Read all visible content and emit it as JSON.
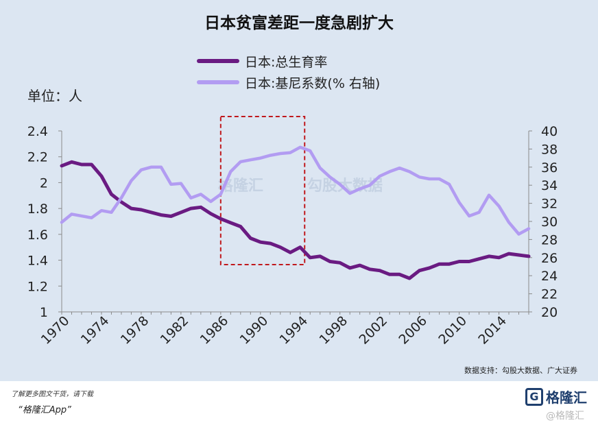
{
  "title": "日本贫富差距一度急剧扩大",
  "unit_label": "单位：人",
  "source_note": "数据支持：勾股大数据、广大证券",
  "footer": {
    "tip": "了解更多图文干货，请下载",
    "app": "“格隆汇App”",
    "logo_mark": "G",
    "logo_text": "格隆汇",
    "watermark": "@格隆汇"
  },
  "colors": {
    "fertility": "#6a1b82",
    "gini": "#b29cf2",
    "highlight_box": "#c0181c",
    "panel": "#dce6f2"
  },
  "chart_data": {
    "type": "line",
    "title": "日本贫富差距一度急剧扩大",
    "x_ticks": [
      "1970",
      "1974",
      "1978",
      "1982",
      "1986",
      "1990",
      "1994",
      "1998",
      "2002",
      "2006",
      "2010",
      "2014"
    ],
    "left_axis": {
      "unit": "单位：人",
      "ylim": [
        1,
        2.4
      ],
      "ticks": [
        "2.4",
        "2.2",
        "2",
        "1.8",
        "1.6",
        "1.4",
        "1.2",
        "1"
      ]
    },
    "right_axis": {
      "ylim": [
        20,
        40
      ],
      "ticks": [
        "40",
        "38",
        "36",
        "34",
        "32",
        "30",
        "28",
        "26",
        "24",
        "22",
        "20"
      ]
    },
    "legend_position": "top",
    "grid": false,
    "series": [
      {
        "name": "日本:总生育率",
        "axis": "left",
        "color": "#6a1b82",
        "x": [
          1970,
          1971,
          1972,
          1973,
          1974,
          1975,
          1976,
          1977,
          1978,
          1979,
          1980,
          1981,
          1982,
          1983,
          1984,
          1985,
          1986,
          1987,
          1988,
          1989,
          1990,
          1991,
          1992,
          1993,
          1994,
          1995,
          1996,
          1997,
          1998,
          1999,
          2000,
          2001,
          2002,
          2003,
          2004,
          2005,
          2006,
          2007,
          2008,
          2009,
          2010,
          2011,
          2012,
          2013,
          2014,
          2015,
          2016,
          2017
        ],
        "values": [
          2.13,
          2.16,
          2.14,
          2.14,
          2.05,
          1.91,
          1.85,
          1.8,
          1.79,
          1.77,
          1.75,
          1.74,
          1.77,
          1.8,
          1.81,
          1.76,
          1.72,
          1.69,
          1.66,
          1.57,
          1.54,
          1.53,
          1.5,
          1.46,
          1.5,
          1.42,
          1.43,
          1.39,
          1.38,
          1.34,
          1.36,
          1.33,
          1.32,
          1.29,
          1.29,
          1.26,
          1.32,
          1.34,
          1.37,
          1.37,
          1.39,
          1.39,
          1.41,
          1.43,
          1.42,
          1.45,
          1.44,
          1.43
        ]
      },
      {
        "name": "日本:基尼系数(% 右轴)",
        "axis": "right",
        "color": "#b29cf2",
        "x": [
          1970,
          1971,
          1972,
          1973,
          1974,
          1975,
          1976,
          1977,
          1978,
          1979,
          1980,
          1981,
          1982,
          1983,
          1984,
          1985,
          1986,
          1987,
          1988,
          1989,
          1990,
          1991,
          1992,
          1993,
          1994,
          1995,
          1996,
          1997,
          1998,
          1999,
          2000,
          2001,
          2002,
          2003,
          2004,
          2005,
          2006,
          2007,
          2008,
          2009,
          2010,
          2011,
          2012,
          2013,
          2014,
          2015,
          2016,
          2017
        ],
        "values": [
          29.9,
          30.8,
          30.6,
          30.4,
          31.2,
          31.0,
          32.6,
          34.5,
          35.7,
          36.0,
          36.0,
          34.1,
          34.2,
          32.6,
          33.0,
          32.2,
          33.0,
          35.5,
          36.6,
          36.8,
          37.0,
          37.3,
          37.5,
          37.6,
          38.2,
          37.8,
          35.9,
          34.9,
          34.1,
          33.1,
          33.6,
          34.0,
          35.0,
          35.5,
          35.9,
          35.5,
          34.9,
          34.7,
          34.7,
          34.1,
          32.1,
          30.6,
          31.0,
          32.9,
          31.7,
          29.9,
          28.6,
          29.2
        ]
      }
    ],
    "highlight_range": [
      1986,
      1995
    ]
  }
}
